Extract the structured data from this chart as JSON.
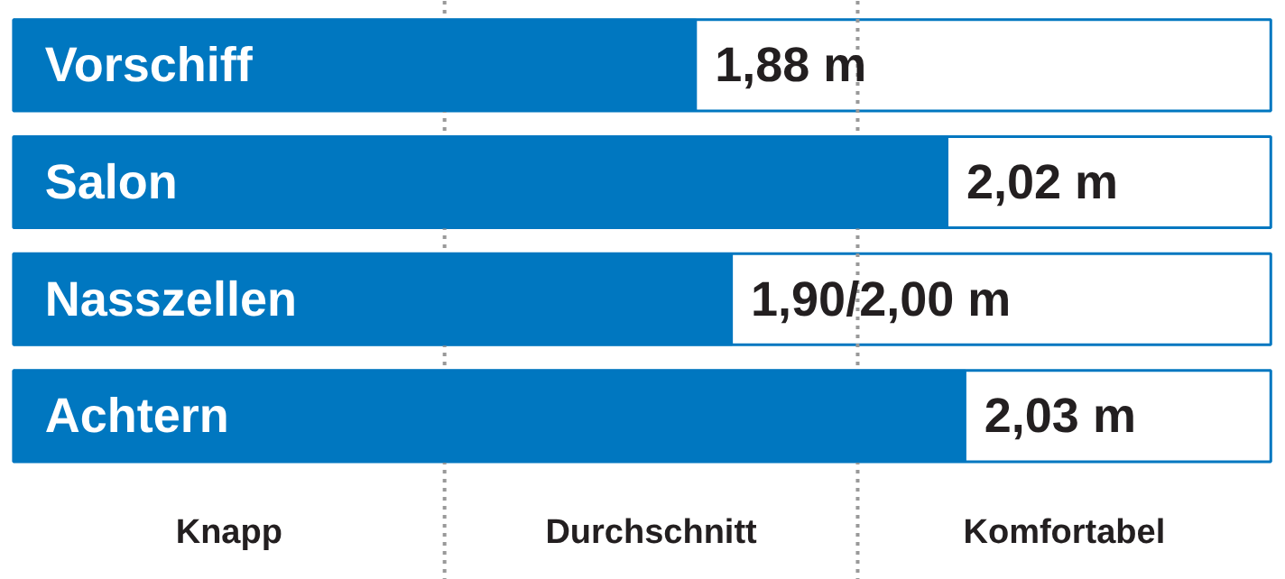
{
  "chart_data": {
    "type": "bar",
    "orientation": "horizontal",
    "categories": [
      "Vorschiff",
      "Salon",
      "Nasszellen",
      "Achtern"
    ],
    "values": [
      1.88,
      2.02,
      1.9,
      2.03
    ],
    "value_labels": [
      "1,88 m",
      "2,02 m",
      "1,90/2,00 m",
      "2,03 m"
    ],
    "color": "#0077c0",
    "xlim": [
      1.5,
      2.2
    ],
    "tick_labels": false,
    "ref_lines": [
      {
        "axis": "x",
        "value": 1.74,
        "line_style": "dotted",
        "color": "#999999"
      },
      {
        "axis": "x",
        "value": 1.97,
        "line_style": "dotted",
        "color": "#999999"
      }
    ],
    "annotations": [
      "Knapp",
      "Durchschnitt",
      "Komfortabel"
    ],
    "grid": false
  }
}
